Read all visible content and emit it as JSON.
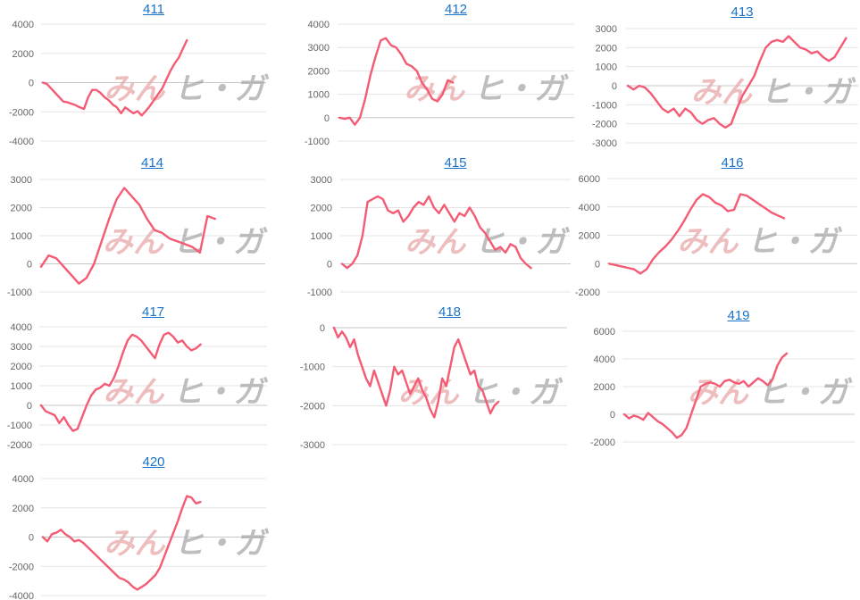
{
  "watermark": {
    "part1": "みん",
    "part2": "ヒ・ガ"
  },
  "colors": {
    "series": "#f45b74",
    "title_link": "#1a73c8",
    "grid": "#e4e4e4"
  },
  "chart_data": [
    {
      "type": "line",
      "title": "411",
      "ylim": [
        -4000,
        4000
      ],
      "yticks": [
        4000,
        2000,
        0,
        -2000,
        -4000
      ],
      "grid": true,
      "series": [
        {
          "values": [
            0,
            -100,
            -400,
            -700,
            -1000,
            -1300,
            -1350,
            -1450,
            -1550,
            -1700,
            -1800,
            -1000,
            -500,
            -500,
            -700,
            -1000,
            -1200,
            -1500,
            -1700,
            -2100,
            -1700,
            -1900,
            -2100,
            -1950,
            -2250,
            -1950,
            -1600,
            -1200,
            -800,
            -400,
            200,
            800,
            1300,
            1700,
            2300,
            2900
          ]
        }
      ]
    },
    {
      "type": "line",
      "title": "412",
      "ylim": [
        -1000,
        4000
      ],
      "yticks": [
        4000,
        3000,
        2000,
        1000,
        0,
        -1000
      ],
      "grid": true,
      "series": [
        {
          "values": [
            0,
            -50,
            0,
            -300,
            0,
            800,
            1800,
            2600,
            3300,
            3400,
            3100,
            3000,
            2700,
            2300,
            2200,
            2000,
            1500,
            1200,
            800,
            700,
            1000,
            1600,
            1500
          ]
        }
      ]
    },
    {
      "type": "line",
      "title": "413",
      "ylim": [
        -3000,
        3000
      ],
      "yticks": [
        3000,
        2000,
        1000,
        0,
        -1000,
        -2000,
        -3000
      ],
      "grid": true,
      "series": [
        {
          "values": [
            0,
            -200,
            0,
            -100,
            -400,
            -800,
            -1200,
            -1400,
            -1200,
            -1600,
            -1200,
            -1400,
            -1800,
            -2000,
            -1800,
            -1700,
            -2000,
            -2200,
            -2000,
            -1200,
            -500,
            0,
            500,
            1300,
            2000,
            2300,
            2400,
            2300,
            2600,
            2300,
            2000,
            1900,
            1700,
            1800,
            1500,
            1300,
            1500,
            2000,
            2500
          ]
        }
      ]
    },
    {
      "type": "line",
      "title": "414",
      "ylim": [
        -1000,
        3000
      ],
      "yticks": [
        3000,
        2000,
        1000,
        0,
        -1000
      ],
      "grid": true,
      "series": [
        {
          "values": [
            -100,
            300,
            200,
            -100,
            -400,
            -700,
            -500,
            0,
            800,
            1600,
            2300,
            2700,
            2400,
            2100,
            1600,
            1200,
            1100,
            900,
            800,
            700,
            600,
            400,
            1700,
            1600
          ]
        }
      ]
    },
    {
      "type": "line",
      "title": "415",
      "ylim": [
        -1000,
        3000
      ],
      "yticks": [
        3000,
        2000,
        1000,
        0,
        -1000
      ],
      "grid": true,
      "series": [
        {
          "values": [
            0,
            -150,
            0,
            300,
            1000,
            2200,
            2300,
            2400,
            2300,
            1900,
            1800,
            1900,
            1500,
            1700,
            2000,
            2200,
            2100,
            2400,
            2000,
            1800,
            2100,
            1800,
            1500,
            1800,
            1700,
            2000,
            1700,
            1300,
            1100,
            800,
            500,
            600,
            400,
            700,
            600,
            200,
            0,
            -150
          ]
        }
      ]
    },
    {
      "type": "line",
      "title": "416",
      "ylim": [
        -2000,
        6000
      ],
      "yticks": [
        6000,
        4000,
        2000,
        0,
        -2000
      ],
      "grid": true,
      "series": [
        {
          "values": [
            0,
            -100,
            -200,
            -300,
            -400,
            -700,
            -400,
            300,
            800,
            1200,
            1700,
            2300,
            3000,
            3800,
            4500,
            4900,
            4700,
            4300,
            4100,
            3700,
            3800,
            4900,
            4800,
            4500,
            4200,
            3900,
            3600,
            3400,
            3200
          ]
        }
      ]
    },
    {
      "type": "line",
      "title": "417",
      "ylim": [
        -2000,
        4000
      ],
      "yticks": [
        4000,
        3000,
        2000,
        1000,
        0,
        -1000,
        -2000
      ],
      "grid": true,
      "series": [
        {
          "values": [
            0,
            -300,
            -400,
            -500,
            -900,
            -600,
            -1000,
            -1300,
            -1200,
            -600,
            0,
            500,
            800,
            900,
            1100,
            1000,
            1400,
            2000,
            2700,
            3300,
            3600,
            3500,
            3300,
            3000,
            2700,
            2400,
            3100,
            3600,
            3700,
            3500,
            3200,
            3300,
            3000,
            2800,
            2900,
            3100
          ]
        }
      ]
    },
    {
      "type": "line",
      "title": "418",
      "ylim": [
        -3000,
        0
      ],
      "yticks": [
        0,
        -1000,
        -2000,
        -3000
      ],
      "grid": true,
      "series": [
        {
          "values": [
            0,
            -250,
            -100,
            -250,
            -500,
            -300,
            -700,
            -1000,
            -1300,
            -1500,
            -1100,
            -1400,
            -1700,
            -2000,
            -1600,
            -1000,
            -1200,
            -1100,
            -1400,
            -1700,
            -1500,
            -1300,
            -1600,
            -1800,
            -2100,
            -2300,
            -1900,
            -1300,
            -1500,
            -1000,
            -500,
            -300,
            -600,
            -900,
            -1200,
            -1100,
            -1500,
            -1600,
            -1900,
            -2200,
            -2000,
            -1900
          ]
        }
      ]
    },
    {
      "type": "line",
      "title": "419",
      "ylim": [
        -2000,
        6000
      ],
      "yticks": [
        6000,
        4000,
        2000,
        0,
        -2000
      ],
      "grid": true,
      "series": [
        {
          "values": [
            0,
            -300,
            -100,
            -200,
            -400,
            100,
            -200,
            -500,
            -700,
            -1000,
            -1300,
            -1700,
            -1500,
            -1000,
            0,
            1000,
            2000,
            2200,
            2300,
            2200,
            2000,
            2400,
            2500,
            2300,
            2200,
            2400,
            2000,
            2300,
            2600,
            2400,
            2100,
            2500,
            3500,
            4100,
            4400
          ]
        }
      ]
    },
    {
      "type": "line",
      "title": "420",
      "ylim": [
        -4000,
        4000
      ],
      "yticks": [
        4000,
        2000,
        0,
        -2000,
        -4000
      ],
      "grid": true,
      "series": [
        {
          "values": [
            0,
            -300,
            200,
            300,
            500,
            200,
            0,
            -300,
            -200,
            -400,
            -700,
            -1000,
            -1300,
            -1600,
            -1900,
            -2200,
            -2500,
            -2800,
            -2900,
            -3100,
            -3400,
            -3600,
            -3400,
            -3200,
            -2900,
            -2600,
            -2100,
            -1300,
            -500,
            300,
            1100,
            2000,
            2800,
            2700,
            2300,
            2400
          ]
        }
      ]
    }
  ]
}
